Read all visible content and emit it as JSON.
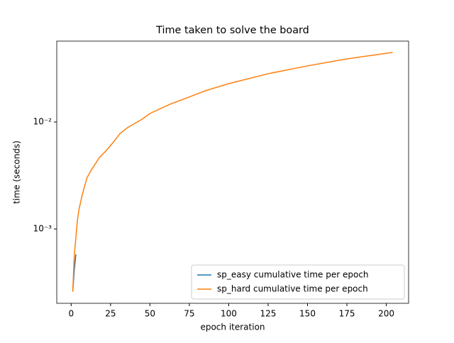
{
  "chart_data": {
    "type": "line",
    "title": "Time taken to solve the board",
    "x_label": "epoch iteration",
    "y_label": "time (seconds)",
    "xlim": [
      -9.15,
      214.15
    ],
    "ylim": [
      0.000202,
      0.0569
    ],
    "log_y": true,
    "xticks": [
      0,
      25,
      50,
      75,
      100,
      125,
      150,
      175,
      200
    ],
    "yticks": [
      {
        "value": 0.001,
        "label": "10⁻³"
      },
      {
        "value": 0.01,
        "label": "10⁻²"
      }
    ],
    "legend": "lower right",
    "series": [
      {
        "name": "sp_easy cumulative time per epoch",
        "color": "#1f77b4",
        "x": [
          1,
          2,
          3
        ],
        "values": [
          0.00026,
          0.00042,
          0.00058
        ]
      },
      {
        "name": "sp_hard cumulative time per epoch",
        "color": "#ff7f0e",
        "x": [
          1,
          2,
          3,
          4,
          5,
          7,
          10,
          13,
          18,
          22,
          27,
          31,
          36,
          45,
          50,
          63,
          75,
          85,
          100,
          125,
          150,
          175,
          204
        ],
        "values": [
          0.00026,
          0.00057,
          0.00083,
          0.00122,
          0.00153,
          0.00208,
          0.003,
          0.0036,
          0.00466,
          0.00535,
          0.00653,
          0.0078,
          0.0089,
          0.0106,
          0.012,
          0.0147,
          0.0171,
          0.0195,
          0.0228,
          0.0282,
          0.0334,
          0.0388,
          0.0446
        ]
      }
    ]
  }
}
